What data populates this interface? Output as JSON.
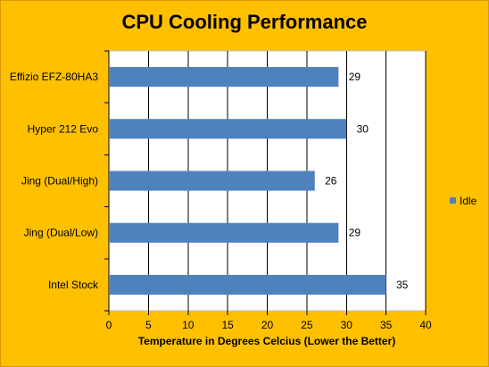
{
  "chart_data": {
    "type": "bar",
    "orientation": "horizontal",
    "title": "CPU Cooling Performance",
    "xlabel": "Temperature in Degrees Celcius (Lower the Better)",
    "ylabel": "",
    "categories": [
      "Effizio EFZ-80HA3",
      "Hyper 212 Evo",
      "Jing (Dual/High)",
      "Jing (Dual/Low)",
      "Intel Stock"
    ],
    "series": [
      {
        "name": "Idle",
        "values": [
          29,
          30,
          26,
          29,
          35
        ],
        "color": "#4f81bd"
      }
    ],
    "xlim": [
      0,
      40
    ],
    "xticks": [
      0,
      5,
      10,
      15,
      20,
      25,
      30,
      35,
      40
    ],
    "grid": "vertical",
    "legend": "right",
    "data_labels": true,
    "colors": {
      "background": "#ffc000",
      "plot_area": "#ffffff",
      "bar": "#4f81bd"
    }
  }
}
